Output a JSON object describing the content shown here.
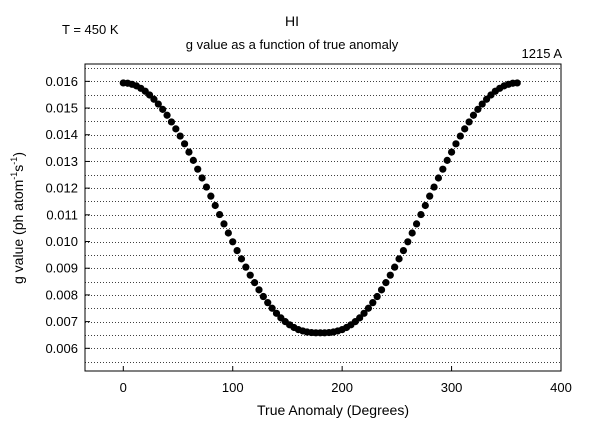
{
  "chart_data": {
    "type": "scatter",
    "title": "HI",
    "subtitle": "g value as a function of true anomaly",
    "temperature_label": "T = 450 K",
    "wavelength_label": "1215 A",
    "xlabel": "True Anomaly (Degrees)",
    "ylabel": {
      "prefix": "g value (ph atom",
      "exp1": "-1",
      "mid": "s",
      "exp2": "-1",
      "suffix": ")"
    },
    "xlim": [
      -35,
      400
    ],
    "ylim": [
      0.00515,
      0.01665
    ],
    "xticks": [
      0,
      100,
      200,
      300,
      400
    ],
    "yticks": [
      0.006,
      0.007,
      0.008,
      0.009,
      0.01,
      0.011,
      0.012,
      0.013,
      0.014,
      0.015,
      0.016
    ],
    "ytick_labels": [
      "0.006",
      "0.007",
      "0.008",
      "0.009",
      "0.010",
      "0.011",
      "0.012",
      "0.013",
      "0.014",
      "0.015",
      "0.016"
    ],
    "grid": "horizontal-dotted",
    "marker_color": "#000000",
    "series": [
      {
        "x": [
          0,
          4,
          8,
          12,
          16,
          20,
          24,
          28,
          32,
          36,
          40,
          44,
          48,
          52,
          56,
          60,
          64,
          68,
          72,
          76,
          80,
          84,
          88,
          92,
          96,
          100,
          104,
          108,
          112,
          116,
          120,
          124,
          128,
          132,
          136,
          140,
          144,
          148,
          152,
          156,
          160,
          164,
          168,
          172,
          176,
          180,
          184,
          188,
          192,
          196,
          200,
          204,
          208,
          212,
          216,
          220,
          224,
          228,
          232,
          236,
          240,
          244,
          248,
          252,
          256,
          260,
          264,
          268,
          272,
          276,
          280,
          284,
          288,
          292,
          296,
          300,
          304,
          308,
          312,
          316,
          320,
          324,
          328,
          332,
          336,
          340,
          344,
          348,
          352,
          356,
          360
        ],
        "y": [
          0.01594,
          0.01593,
          0.01589,
          0.01583,
          0.01574,
          0.01563,
          0.01549,
          0.01533,
          0.01515,
          0.01495,
          0.01473,
          0.01448,
          0.01422,
          0.01395,
          0.01366,
          0.01335,
          0.01304,
          0.01271,
          0.01238,
          0.01204,
          0.0117,
          0.01135,
          0.01101,
          0.01066,
          0.01032,
          0.00999,
          0.00966,
          0.00935,
          0.00904,
          0.00874,
          0.00846,
          0.00819,
          0.00794,
          0.00771,
          0.0075,
          0.00731,
          0.00714,
          0.007,
          0.00688,
          0.00678,
          0.0067,
          0.00665,
          0.00661,
          0.00659,
          0.00658,
          0.00658,
          0.00658,
          0.00659,
          0.00661,
          0.00665,
          0.0067,
          0.00678,
          0.00688,
          0.007,
          0.00714,
          0.00731,
          0.0075,
          0.00771,
          0.00794,
          0.00819,
          0.00846,
          0.00874,
          0.00904,
          0.00935,
          0.00966,
          0.00999,
          0.01032,
          0.01066,
          0.01101,
          0.01135,
          0.0117,
          0.01204,
          0.01238,
          0.01271,
          0.01304,
          0.01335,
          0.01366,
          0.01395,
          0.01422,
          0.01448,
          0.01473,
          0.01495,
          0.01515,
          0.01533,
          0.01549,
          0.01563,
          0.01574,
          0.01583,
          0.01589,
          0.01593,
          0.01594
        ]
      }
    ]
  }
}
